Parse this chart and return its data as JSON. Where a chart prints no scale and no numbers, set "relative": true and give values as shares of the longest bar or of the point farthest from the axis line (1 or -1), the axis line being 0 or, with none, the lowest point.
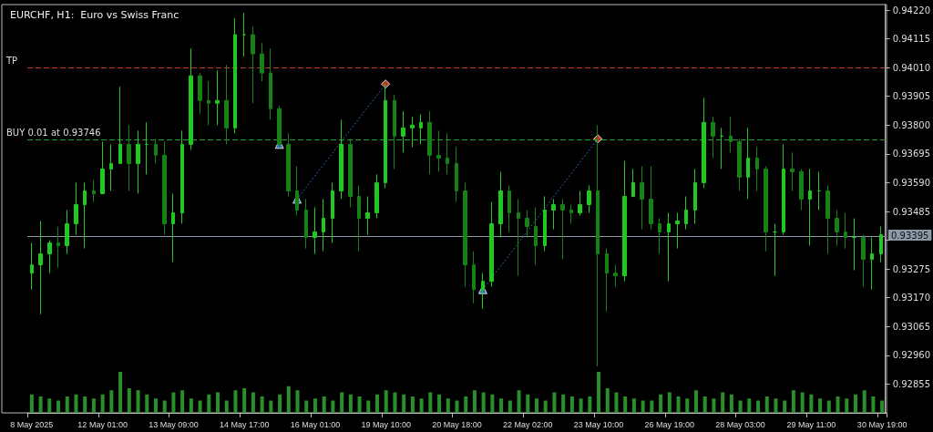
{
  "chart_data": [
    {
      "type": "candlestick",
      "title": "EURCHF, H1:  Euro vs Swiss Franc",
      "tick_labels": "y",
      "grid": false,
      "categories": [
        null,
        null,
        null,
        null,
        null,
        null,
        null,
        null,
        null,
        null,
        null,
        null,
        null,
        null,
        null,
        null,
        null,
        null,
        null,
        null,
        null,
        null,
        null,
        null,
        null,
        null,
        null,
        null,
        null,
        null,
        null,
        null,
        null,
        null,
        null,
        null,
        null,
        null,
        null,
        null,
        null,
        null,
        null,
        null,
        null,
        null,
        null,
        null,
        null,
        null,
        null,
        null,
        null,
        null,
        null,
        null,
        null,
        null,
        null,
        null,
        null,
        null,
        null,
        null,
        null,
        null,
        null,
        null,
        null,
        null,
        null,
        null,
        null,
        null,
        null,
        null,
        null,
        null,
        null,
        null,
        null,
        null,
        null,
        null,
        null,
        null,
        null,
        null,
        null,
        null,
        null,
        null,
        null,
        null,
        null,
        null,
        null
      ],
      "colors": [
        "#22c822",
        "#22c822",
        "#22c822",
        "#168216",
        "#22c822",
        "#22c822",
        "#22c822",
        "#168216",
        "#22c822",
        "#22c822",
        "#22c822",
        "#168216",
        "#22c822",
        "#22c822",
        "#168216",
        "#168216",
        "#22c822",
        "#22c822",
        "#22c822",
        "#168216",
        "#168216",
        "#22c822",
        "#168216",
        "#22c822",
        "#22c822",
        "#168216",
        "#168216",
        "#168216",
        "#168216",
        "#168216",
        "#168216",
        "#168216",
        "#22c822",
        "#22c822",
        "#22c822",
        "#22c822",
        "#168216",
        "#168216",
        "#22c822",
        "#22c822",
        "#22c822",
        "#168216",
        "#22c822",
        "#22c822",
        "#22c822",
        "#168216",
        "#168216",
        "#168216",
        "#168216",
        "#168216",
        "#168216",
        "#22c822",
        "#22c822",
        "#22c822",
        "#168216",
        "#168216",
        "#168216",
        "#168216",
        "#22c822",
        "#22c822",
        "#168216",
        "#168216",
        "#22c822",
        "#22c822",
        "#168216",
        "#168216",
        "#168216",
        "#22c822",
        "#22c822",
        "#168216",
        "#168216",
        "#168216",
        "#22c822",
        "#22c822",
        "#22c822",
        "#22c822",
        "#22c822",
        "#168216",
        "#22c822",
        "#168216",
        "#168216",
        "#22c822",
        "#168216",
        "#168216",
        "#22c822",
        "#22c822",
        "#168216",
        "#168216",
        "#22c822",
        "#22c822",
        "#168216",
        "#168216",
        "#168216",
        "#22c822",
        "#168216",
        "#22c822",
        "#22c822"
      ],
      "ohlc": [
        [
          0.9326,
          0.9337,
          0.932,
          0.9329
        ],
        [
          0.9329,
          0.9345,
          0.9311,
          0.9333
        ],
        [
          0.9333,
          0.9338,
          0.9326,
          0.9337
        ],
        [
          0.9337,
          0.9343,
          0.9328,
          0.9336
        ],
        [
          0.9336,
          0.9349,
          0.9333,
          0.9344
        ],
        [
          0.9344,
          0.9359,
          0.934,
          0.9351
        ],
        [
          0.9351,
          0.9359,
          0.9335,
          0.9356
        ],
        [
          0.9356,
          0.936,
          0.9352,
          0.9355
        ],
        [
          0.9355,
          0.9374,
          0.9355,
          0.9364
        ],
        [
          0.9364,
          0.9373,
          0.9356,
          0.9366
        ],
        [
          0.9366,
          0.9394,
          0.9366,
          0.9373
        ],
        [
          0.9373,
          0.938,
          0.9356,
          0.9366
        ],
        [
          0.9366,
          0.9378,
          0.9355,
          0.9373
        ],
        [
          0.9373,
          0.9381,
          0.9362,
          0.9373
        ],
        [
          0.9373,
          0.9375,
          0.9366,
          0.9369
        ],
        [
          0.9369,
          0.9374,
          0.934,
          0.9344
        ],
        [
          0.9344,
          0.9355,
          0.933,
          0.9348
        ],
        [
          0.9348,
          0.9378,
          0.9344,
          0.9373
        ],
        [
          0.9373,
          0.9408,
          0.9371,
          0.9398
        ],
        [
          0.9398,
          0.9399,
          0.9384,
          0.9389
        ],
        [
          0.9389,
          0.9396,
          0.938,
          0.9388
        ],
        [
          0.9388,
          0.94,
          0.938,
          0.9389
        ],
        [
          0.9389,
          0.9402,
          0.9373,
          0.9379
        ],
        [
          0.9379,
          0.9419,
          0.9377,
          0.9413
        ],
        [
          0.9413,
          0.9421,
          0.9405,
          0.9413
        ],
        [
          0.9413,
          0.9416,
          0.9388,
          0.9406
        ],
        [
          0.9406,
          0.941,
          0.9396,
          0.9399
        ],
        [
          0.9399,
          0.9408,
          0.9382,
          0.9386
        ],
        [
          0.9386,
          0.9387,
          0.9372,
          0.9373
        ],
        [
          0.9373,
          0.9377,
          0.9354,
          0.9356
        ],
        [
          0.9356,
          0.9365,
          0.9347,
          0.9349
        ],
        [
          0.9349,
          0.9353,
          0.9335,
          0.9339
        ],
        [
          0.9339,
          0.935,
          0.9333,
          0.9341
        ],
        [
          0.9341,
          0.9353,
          0.9334,
          0.9346
        ],
        [
          0.9346,
          0.9359,
          0.9337,
          0.9356
        ],
        [
          0.9356,
          0.9382,
          0.9353,
          0.9373
        ],
        [
          0.9373,
          0.9375,
          0.935,
          0.9354
        ],
        [
          0.9354,
          0.9358,
          0.9334,
          0.9346
        ],
        [
          0.9346,
          0.9354,
          0.934,
          0.9348
        ],
        [
          0.9348,
          0.9362,
          0.9346,
          0.9359
        ],
        [
          0.9359,
          0.9395,
          0.9357,
          0.9389
        ],
        [
          0.9389,
          0.9391,
          0.9364,
          0.9376
        ],
        [
          0.9376,
          0.9385,
          0.937,
          0.9379
        ],
        [
          0.9379,
          0.9383,
          0.9372,
          0.938
        ],
        [
          0.9379,
          0.9384,
          0.9373,
          0.9381
        ],
        [
          0.9381,
          0.9385,
          0.9362,
          0.9369
        ],
        [
          0.9369,
          0.9378,
          0.9363,
          0.9368
        ],
        [
          0.9368,
          0.9377,
          0.9362,
          0.9366
        ],
        [
          0.9366,
          0.9372,
          0.9352,
          0.9356
        ],
        [
          0.9356,
          0.9359,
          0.9321,
          0.9329
        ],
        [
          0.9329,
          0.9334,
          0.9315,
          0.932
        ],
        [
          0.932,
          0.9326,
          0.9313,
          0.9323
        ],
        [
          0.9323,
          0.9352,
          0.9321,
          0.9344
        ],
        [
          0.9344,
          0.9363,
          0.9339,
          0.9356
        ],
        [
          0.9356,
          0.9358,
          0.9341,
          0.9348
        ],
        [
          0.9348,
          0.9353,
          0.9325,
          0.9346
        ],
        [
          0.9346,
          0.9349,
          0.9339,
          0.9343
        ],
        [
          0.9343,
          0.935,
          0.9329,
          0.9336
        ],
        [
          0.9336,
          0.9354,
          0.9334,
          0.9349
        ],
        [
          0.9349,
          0.9353,
          0.9342,
          0.9351
        ],
        [
          0.9351,
          0.9353,
          0.9331,
          0.9349
        ],
        [
          0.9349,
          0.9351,
          0.9344,
          0.9348
        ],
        [
          0.9348,
          0.9356,
          0.9347,
          0.9351
        ],
        [
          0.9351,
          0.9358,
          0.9348,
          0.9356
        ],
        [
          0.9356,
          0.938,
          0.9292,
          0.9333
        ],
        [
          0.9333,
          0.9335,
          0.9312,
          0.9326
        ],
        [
          0.9326,
          0.9329,
          0.9321,
          0.9325
        ],
        [
          0.9325,
          0.9367,
          0.9323,
          0.9354
        ],
        [
          0.9354,
          0.9364,
          0.9354,
          0.9359
        ],
        [
          0.9359,
          0.9365,
          0.9342,
          0.9353
        ],
        [
          0.9353,
          0.9365,
          0.9342,
          0.9344
        ],
        [
          0.9344,
          0.9346,
          0.9333,
          0.9341
        ],
        [
          0.9341,
          0.9348,
          0.9323,
          0.9344
        ],
        [
          0.9344,
          0.9348,
          0.9335,
          0.9345
        ],
        [
          0.9344,
          0.9354,
          0.9342,
          0.9349
        ],
        [
          0.9349,
          0.9364,
          0.9344,
          0.9359
        ],
        [
          0.9359,
          0.939,
          0.9357,
          0.9381
        ],
        [
          0.9381,
          0.9383,
          0.9368,
          0.9376
        ],
        [
          0.9376,
          0.9379,
          0.9364,
          0.9376
        ],
        [
          0.9376,
          0.9383,
          0.937,
          0.9374
        ],
        [
          0.9374,
          0.9375,
          0.9356,
          0.9361
        ],
        [
          0.9361,
          0.9379,
          0.9353,
          0.9368
        ],
        [
          0.9368,
          0.9372,
          0.9356,
          0.9364
        ],
        [
          0.9364,
          0.9365,
          0.9334,
          0.9341
        ],
        [
          0.9341,
          0.9344,
          0.9325,
          0.9341
        ],
        [
          0.9341,
          0.9373,
          0.934,
          0.9364
        ],
        [
          0.9364,
          0.937,
          0.9356,
          0.9363
        ],
        [
          0.9363,
          0.9364,
          0.9349,
          0.9353
        ],
        [
          0.9353,
          0.9364,
          0.9336,
          0.9356
        ],
        [
          0.9356,
          0.9363,
          0.9349,
          0.9356
        ],
        [
          0.9356,
          0.9358,
          0.9333,
          0.9346
        ],
        [
          0.9346,
          0.9349,
          0.9336,
          0.9341
        ],
        [
          0.9341,
          0.9348,
          0.9335,
          0.9339
        ],
        [
          0.9339,
          0.9346,
          0.9327,
          0.9339
        ],
        [
          0.9339,
          0.934,
          0.9321,
          0.9331
        ],
        [
          0.9331,
          0.9339,
          0.932,
          0.9333
        ],
        [
          0.9333,
          0.9343,
          0.933,
          0.934
        ]
      ],
      "series": [
        {
          "type": "line",
          "color": "#2f6fb8",
          "line_style": "dotted",
          "marker": "none",
          "values": [
            null,
            null,
            null,
            null,
            null,
            null,
            null,
            null,
            null,
            null,
            null,
            null,
            null,
            null,
            null,
            null,
            null,
            null,
            null,
            null,
            null,
            null,
            null,
            null,
            null,
            null,
            null,
            null,
            null,
            null,
            0.9353,
            null,
            null,
            null,
            null,
            null,
            null,
            null,
            null,
            null,
            0.9395,
            null,
            null,
            null,
            null,
            null,
            null,
            null,
            null,
            null,
            null,
            null,
            null,
            null,
            null,
            null,
            null,
            null,
            null,
            null,
            null,
            null,
            null,
            null,
            null,
            null,
            null,
            null,
            null,
            null,
            null,
            null,
            null,
            null,
            null,
            null,
            null,
            null,
            null,
            null,
            null,
            null,
            null,
            null,
            null,
            null,
            null,
            null,
            null,
            null,
            null,
            null,
            null,
            null,
            null,
            null,
            null
          ]
        },
        {
          "type": "line",
          "color": "#2f6fb8",
          "line_style": "dotted",
          "marker": "none",
          "values": [
            null,
            null,
            null,
            null,
            null,
            null,
            null,
            null,
            null,
            null,
            null,
            null,
            null,
            null,
            null,
            null,
            null,
            null,
            null,
            null,
            null,
            null,
            null,
            null,
            null,
            null,
            null,
            null,
            null,
            null,
            null,
            null,
            null,
            null,
            null,
            null,
            null,
            null,
            null,
            null,
            null,
            null,
            null,
            null,
            null,
            null,
            null,
            null,
            null,
            null,
            null,
            0.932,
            null,
            null,
            null,
            null,
            null,
            null,
            null,
            null,
            null,
            null,
            null,
            null,
            0.9375,
            null,
            null,
            null,
            null,
            null,
            null,
            null,
            null,
            null,
            null,
            null,
            null,
            null,
            null,
            null,
            null,
            null,
            null,
            null,
            null,
            null,
            null,
            null,
            null,
            null,
            null,
            null,
            null,
            null,
            null,
            null,
            null
          ]
        },
        {
          "type": "scatter",
          "color": "#3b8ee0",
          "marker": "triangle",
          "values": [
            null,
            null,
            null,
            null,
            null,
            null,
            null,
            null,
            null,
            null,
            null,
            null,
            null,
            null,
            null,
            null,
            null,
            null,
            null,
            null,
            null,
            null,
            null,
            null,
            null,
            null,
            null,
            null,
            0.9373,
            null,
            0.9353,
            null,
            null,
            null,
            null,
            null,
            null,
            null,
            null,
            null,
            null,
            null,
            null,
            null,
            null,
            null,
            null,
            null,
            null,
            null,
            null,
            0.932,
            null,
            null,
            null,
            null,
            null,
            null,
            null,
            null,
            null,
            null,
            null,
            null,
            null,
            null,
            null,
            null,
            null,
            null,
            null,
            null,
            null,
            null,
            null,
            null,
            null,
            null,
            null,
            null,
            null,
            null,
            null,
            null,
            null,
            null,
            null,
            null,
            null,
            null,
            null,
            null,
            null,
            null,
            null,
            null,
            null
          ]
        },
        {
          "type": "scatter",
          "color": "#e8452c",
          "marker": "diamond",
          "values": [
            null,
            null,
            null,
            null,
            null,
            null,
            null,
            null,
            null,
            null,
            null,
            null,
            null,
            null,
            null,
            null,
            null,
            null,
            null,
            null,
            null,
            null,
            null,
            null,
            null,
            null,
            null,
            null,
            null,
            null,
            null,
            null,
            null,
            null,
            null,
            null,
            null,
            null,
            null,
            null,
            0.9395,
            null,
            null,
            null,
            null,
            null,
            null,
            null,
            null,
            null,
            null,
            null,
            null,
            null,
            null,
            null,
            null,
            null,
            null,
            null,
            null,
            null,
            null,
            null,
            0.9375,
            null,
            null,
            null,
            null,
            null,
            null,
            null,
            null,
            null,
            null,
            null,
            null,
            null,
            null,
            null,
            null,
            null,
            null,
            null,
            null,
            null,
            null,
            null,
            null,
            null,
            null,
            null,
            null,
            null,
            null,
            null,
            null
          ]
        }
      ],
      "ylim": [
        0.9275,
        0.9424
      ],
      "yticks": [
        {
          "value": 0.92855,
          "label": "0.92855"
        },
        {
          "value": 0.9296,
          "label": "0.92960"
        },
        {
          "value": 0.93065,
          "label": "0.93065"
        },
        {
          "value": 0.9317,
          "label": "0.93170"
        },
        {
          "value": 0.93275,
          "label": "0.93275"
        },
        {
          "value": 0.9338,
          "label": null
        },
        {
          "value": 0.93485,
          "label": "0.93485"
        },
        {
          "value": 0.9359,
          "label": "0.93590"
        },
        {
          "value": 0.93695,
          "label": "0.93695"
        },
        {
          "value": 0.938,
          "label": "0.93800"
        },
        {
          "value": 0.93905,
          "label": "0.93905"
        },
        {
          "value": 0.9401,
          "label": "0.94010"
        },
        {
          "value": 0.94115,
          "label": "0.94115"
        },
        {
          "value": 0.9422,
          "label": "0.94220"
        }
      ],
      "ref_lines": [
        {
          "axis": "y",
          "value": 0.9401,
          "label": "TP",
          "color": "#c0392b",
          "line_style": "dashed"
        },
        {
          "axis": "y",
          "value": 0.93746,
          "label": "BUY 0.01 at 0.93746",
          "color": "#1fa51f",
          "line_style": "dashed"
        },
        {
          "axis": "y",
          "value": 0.93395,
          "label": "0.93395",
          "color": "#8c9aa8",
          "line_style": "solid"
        }
      ]
    },
    {
      "type": "bar",
      "relative": true,
      "color": "#2a8f2a",
      "tick_labels": "x",
      "grid": false,
      "categories": [
        "8 May 2025",
        null,
        null,
        null,
        null,
        null,
        null,
        null,
        "12 May 01:00",
        null,
        null,
        null,
        null,
        null,
        null,
        null,
        "13 May 09:00",
        null,
        null,
        null,
        null,
        null,
        null,
        null,
        "14 May 17:00",
        null,
        null,
        null,
        null,
        null,
        null,
        null,
        "16 May 01:00",
        null,
        null,
        null,
        null,
        null,
        null,
        null,
        "19 May 10:00",
        null,
        null,
        null,
        null,
        null,
        null,
        null,
        "20 May 18:00",
        null,
        null,
        null,
        null,
        null,
        null,
        null,
        "22 May 02:00",
        null,
        null,
        null,
        null,
        null,
        null,
        null,
        "23 May 10:00",
        null,
        null,
        null,
        null,
        null,
        null,
        null,
        "26 May 19:00",
        null,
        null,
        null,
        null,
        null,
        null,
        null,
        "28 May 03:00",
        null,
        null,
        null,
        null,
        null,
        null,
        null,
        "29 May 11:00",
        null,
        null,
        null,
        null,
        null,
        null,
        null,
        "30 May 19:00"
      ],
      "values": [
        0.45,
        0.4,
        0.35,
        0.3,
        0.4,
        0.45,
        0.4,
        0.35,
        0.45,
        0.55,
        1.0,
        0.6,
        0.55,
        0.45,
        0.35,
        0.3,
        0.5,
        0.55,
        0.35,
        0.3,
        0.45,
        0.5,
        0.3,
        0.55,
        0.6,
        0.5,
        0.4,
        0.3,
        0.45,
        0.65,
        0.55,
        0.3,
        0.35,
        0.4,
        0.3,
        0.5,
        0.45,
        0.4,
        0.3,
        0.45,
        0.55,
        0.5,
        0.45,
        0.4,
        0.35,
        0.5,
        0.45,
        0.35,
        0.3,
        0.4,
        0.55,
        0.5,
        0.45,
        0.35,
        0.3,
        0.55,
        0.45,
        0.35,
        0.3,
        0.5,
        0.45,
        0.4,
        0.35,
        0.4,
        1.0,
        0.6,
        0.5,
        0.4,
        0.35,
        0.3,
        0.3,
        0.45,
        0.5,
        0.4,
        0.35,
        0.55,
        0.4,
        0.35,
        0.5,
        0.45,
        0.3,
        0.35,
        0.3,
        0.4,
        0.35,
        0.3,
        0.55,
        0.5,
        0.45,
        0.35,
        0.3,
        0.4,
        0.35,
        0.45,
        0.55,
        0.4,
        0.3
      ]
    }
  ]
}
